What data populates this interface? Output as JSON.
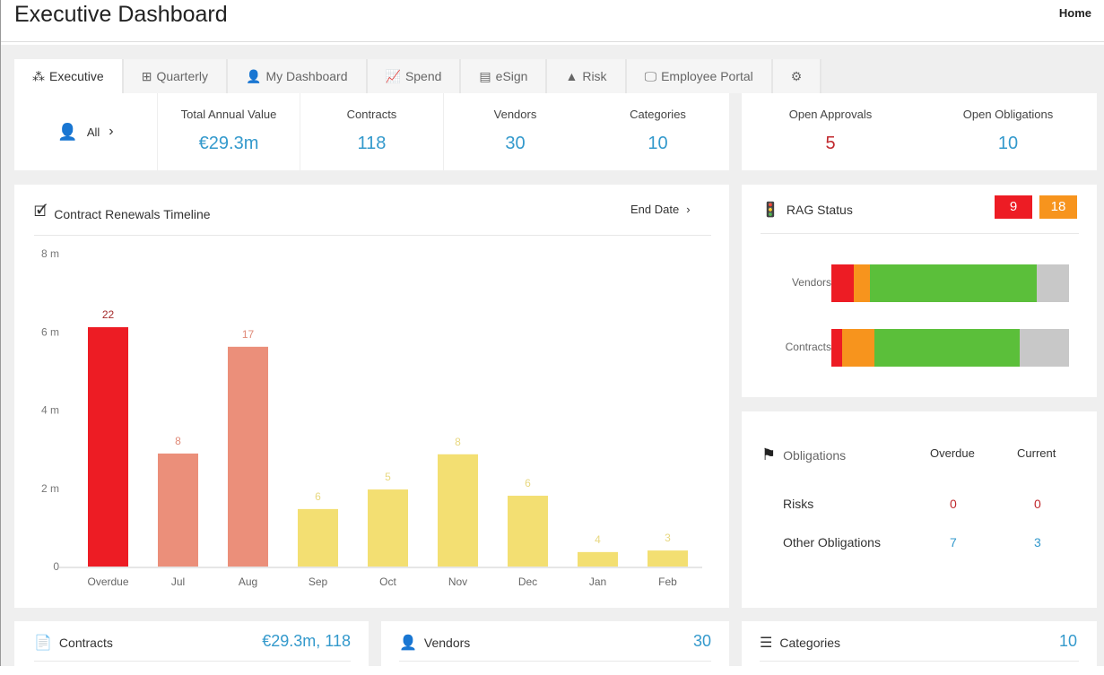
{
  "header": {
    "title": "Executive Dashboard",
    "home": "Home"
  },
  "tabs": [
    {
      "label": "Executive",
      "icon": "network-icon"
    },
    {
      "label": "Quarterly",
      "icon": "grid-icon"
    },
    {
      "label": "My Dashboard",
      "icon": "user-gauge-icon"
    },
    {
      "label": "Spend",
      "icon": "line-chart-icon"
    },
    {
      "label": "eSign",
      "icon": "file-sign-icon"
    },
    {
      "label": "Risk",
      "icon": "warning-icon"
    },
    {
      "label": "Employee Portal",
      "icon": "monitor-icon"
    },
    {
      "label": "",
      "icon": "gear-icon"
    }
  ],
  "filter": {
    "label": "All"
  },
  "kpis": [
    {
      "label": "Total Annual Value",
      "value": "€29.3m"
    },
    {
      "label": "Contracts",
      "value": "118"
    },
    {
      "label": "Vendors",
      "value": "30"
    },
    {
      "label": "Categories",
      "value": "10"
    }
  ],
  "open": {
    "approvals_label": "Open Approvals",
    "approvals": "5",
    "obligations_label": "Open Obligations",
    "obligations": "10"
  },
  "renewals": {
    "title": "Contract Renewals Timeline",
    "sort": "End Date"
  },
  "chart_data": {
    "type": "bar",
    "title": "Contract Renewals Timeline",
    "xlabel": "",
    "ylabel": "",
    "ylim": [
      0,
      8
    ],
    "yticks": [
      "0",
      "2 m",
      "4 m",
      "6 m",
      "8 m"
    ],
    "categories": [
      "Overdue",
      "Jul",
      "Aug",
      "Sep",
      "Oct",
      "Nov",
      "Dec",
      "Jan",
      "Feb"
    ],
    "values": [
      6.12,
      2.89,
      5.62,
      1.47,
      1.97,
      2.87,
      1.81,
      0.37,
      0.41
    ],
    "labels": [
      "22",
      "8",
      "17",
      "6",
      "5",
      "8",
      "6",
      "4",
      "3"
    ],
    "colors": [
      "#ed1c24",
      "#eb8f7a",
      "#eb8f7a",
      "#f3df72",
      "#f3df72",
      "#f3df72",
      "#f3df72",
      "#f3df72",
      "#f3df72"
    ],
    "label_colors": [
      "#a52a2a",
      "#e08a78",
      "#e08a78",
      "#e8d880",
      "#e8d880",
      "#e8d880",
      "#e8d880",
      "#e8d880",
      "#e8d880"
    ]
  },
  "rag": {
    "title": "RAG Status",
    "red_count": "9",
    "amber_count": "18",
    "rows": [
      {
        "label": "Vendors",
        "segments": [
          9.4,
          6.8,
          70.2,
          13.6
        ]
      },
      {
        "label": "Contracts",
        "segments": [
          4.5,
          13.6,
          61.1,
          20.8
        ]
      }
    ],
    "colors": [
      "#ed1c24",
      "#f7941d",
      "#5bbf3a",
      "#c8c8c8"
    ]
  },
  "obligations": {
    "title": "Obligations",
    "col1": "Overdue",
    "col2": "Current",
    "rows": [
      {
        "label": "Risks",
        "overdue": "0",
        "current": "0"
      },
      {
        "label": "Other Obligations",
        "overdue": "7",
        "current": "3"
      }
    ]
  },
  "bottom": {
    "contracts": {
      "title": "Contracts",
      "value": "€29.3m, 118"
    },
    "vendors": {
      "title": "Vendors",
      "value": "30"
    },
    "categories": {
      "title": "Categories",
      "value": "10"
    }
  }
}
